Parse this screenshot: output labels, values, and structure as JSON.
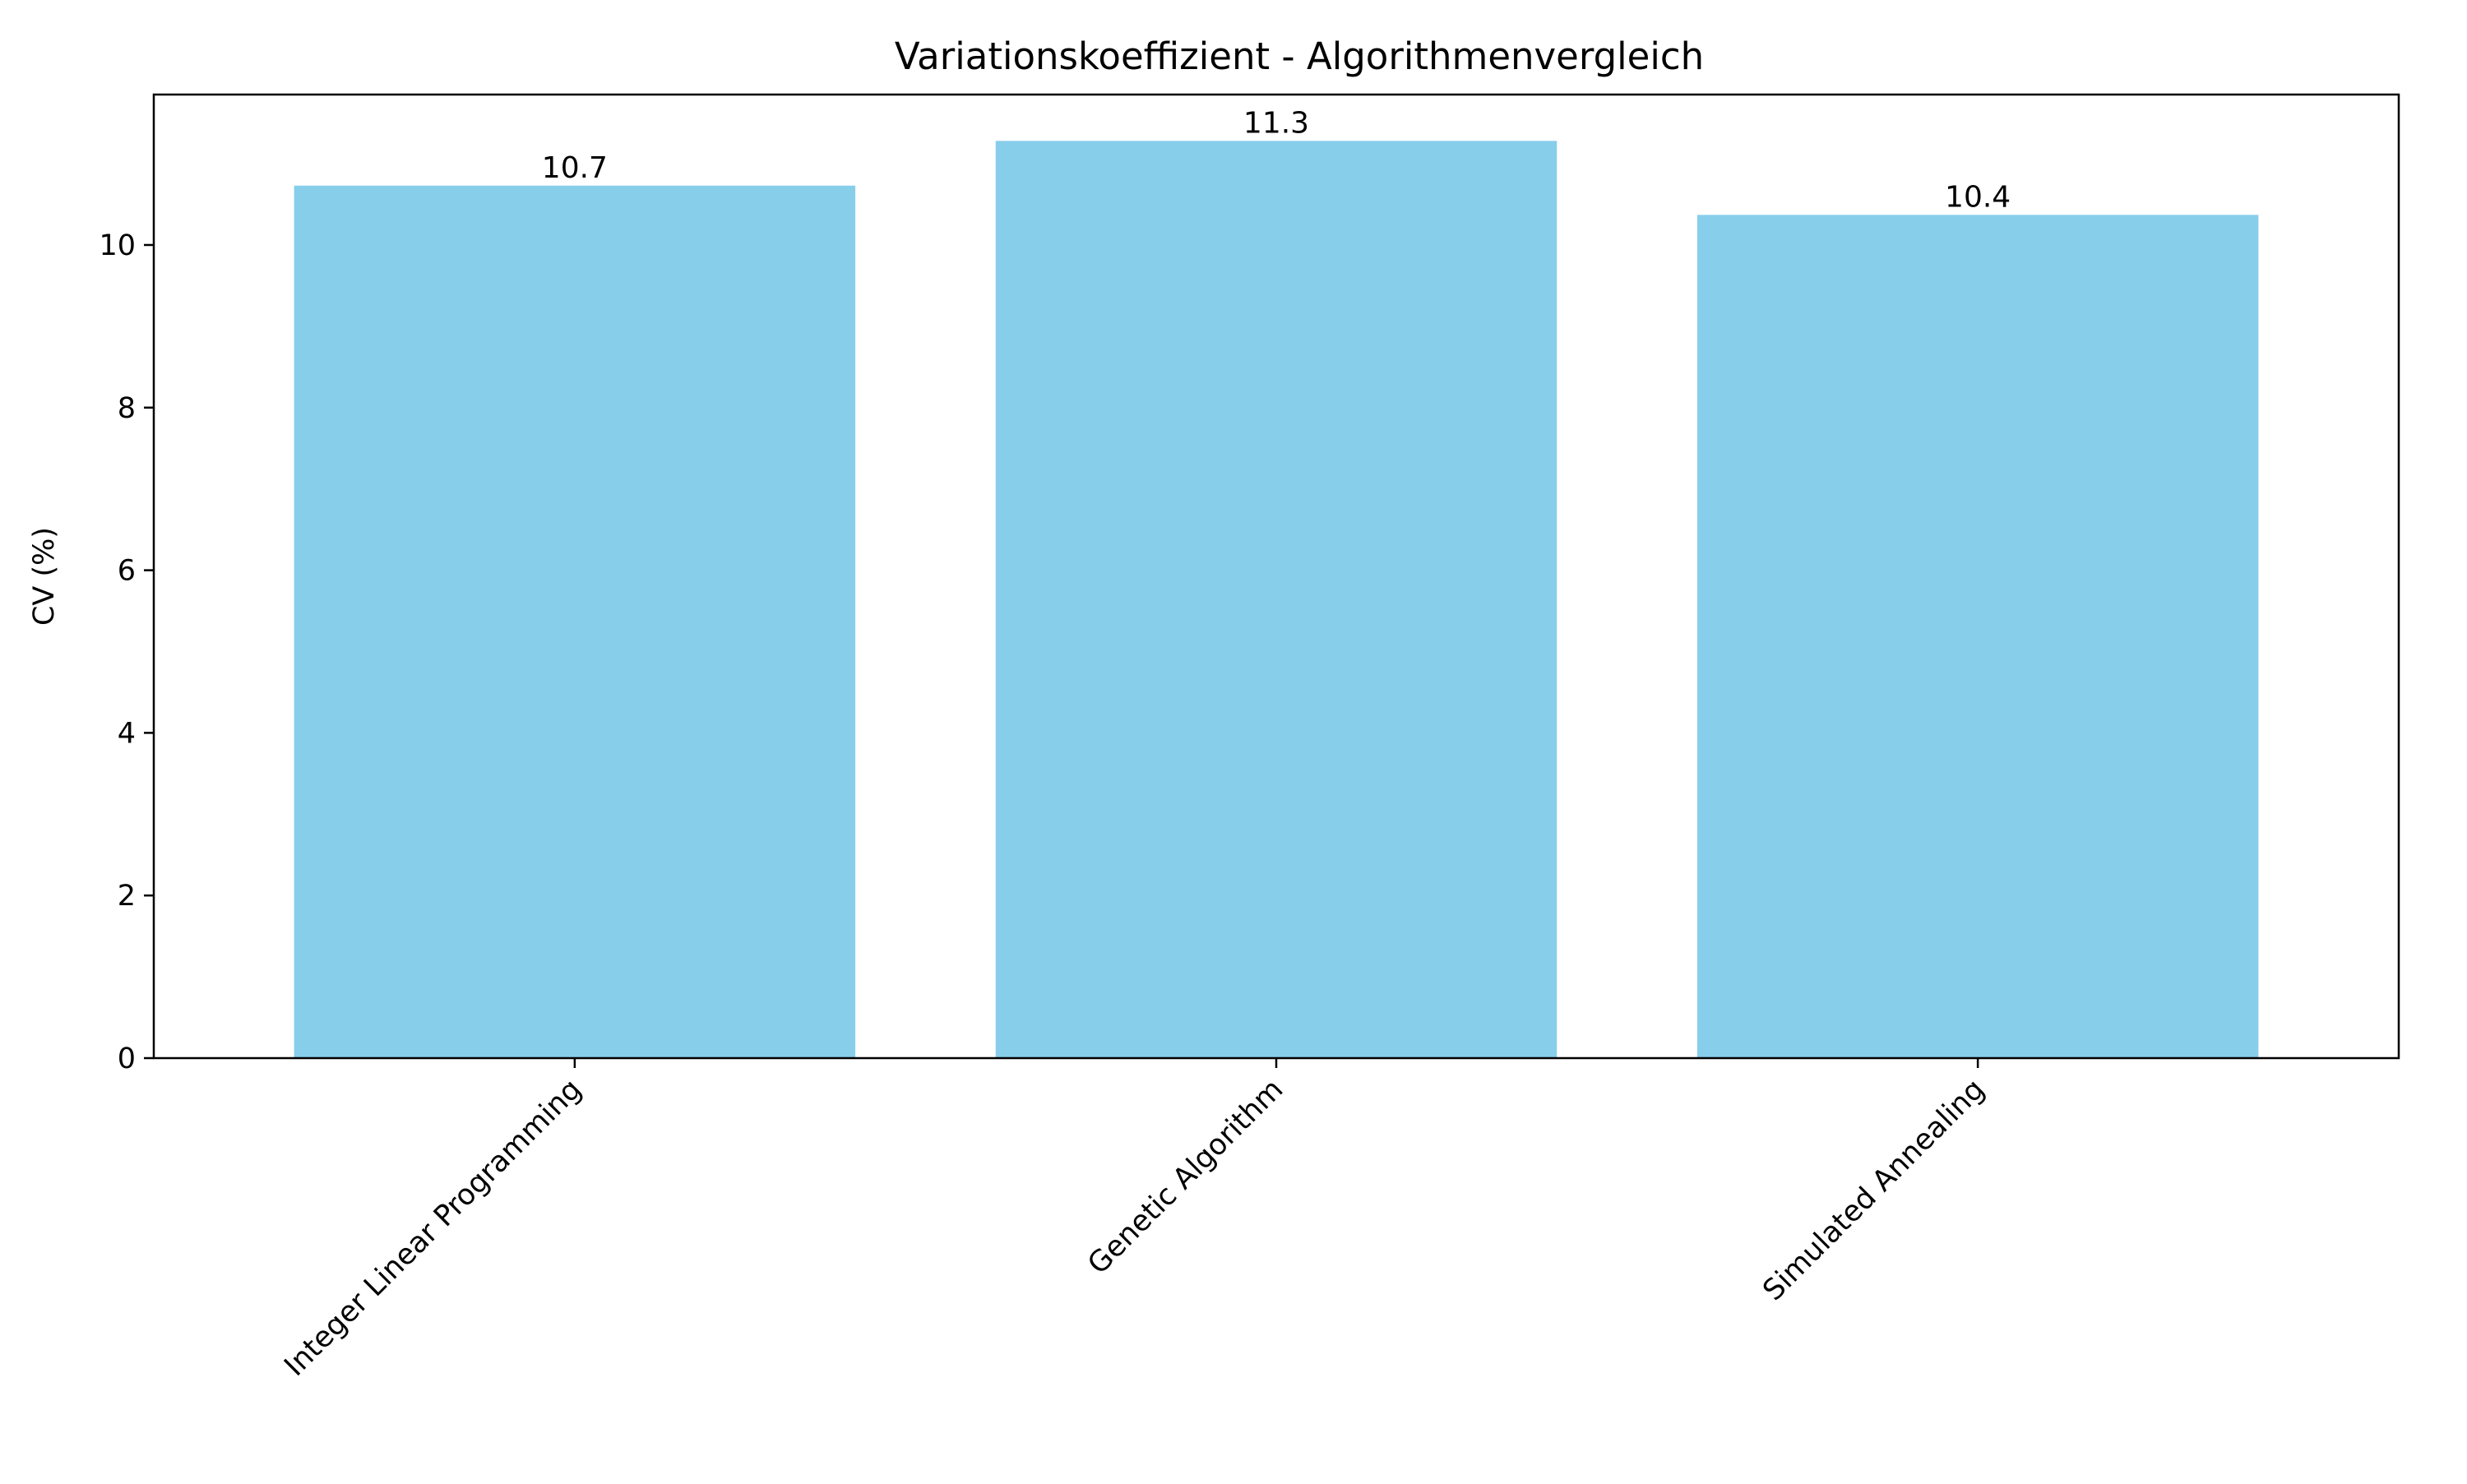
{
  "chart_data": {
    "type": "bar",
    "title": "Variationskoeffizient - Algorithmenvergleich",
    "xlabel": "",
    "ylabel": "CV (%)",
    "categories": [
      "Integer Linear Programming",
      "Genetic Algorithm",
      "Simulated Annealing"
    ],
    "values": [
      10.73,
      11.28,
      10.37
    ],
    "value_labels": [
      "10.7",
      "11.3",
      "10.4"
    ],
    "ylim": [
      0,
      11.85
    ],
    "yticks": [
      0,
      2,
      4,
      6,
      8,
      10
    ],
    "ytick_labels": [
      "0",
      "2",
      "4",
      "6",
      "8",
      "10"
    ],
    "bar_color": "#87CEEB",
    "grid": false,
    "legend": "none"
  }
}
